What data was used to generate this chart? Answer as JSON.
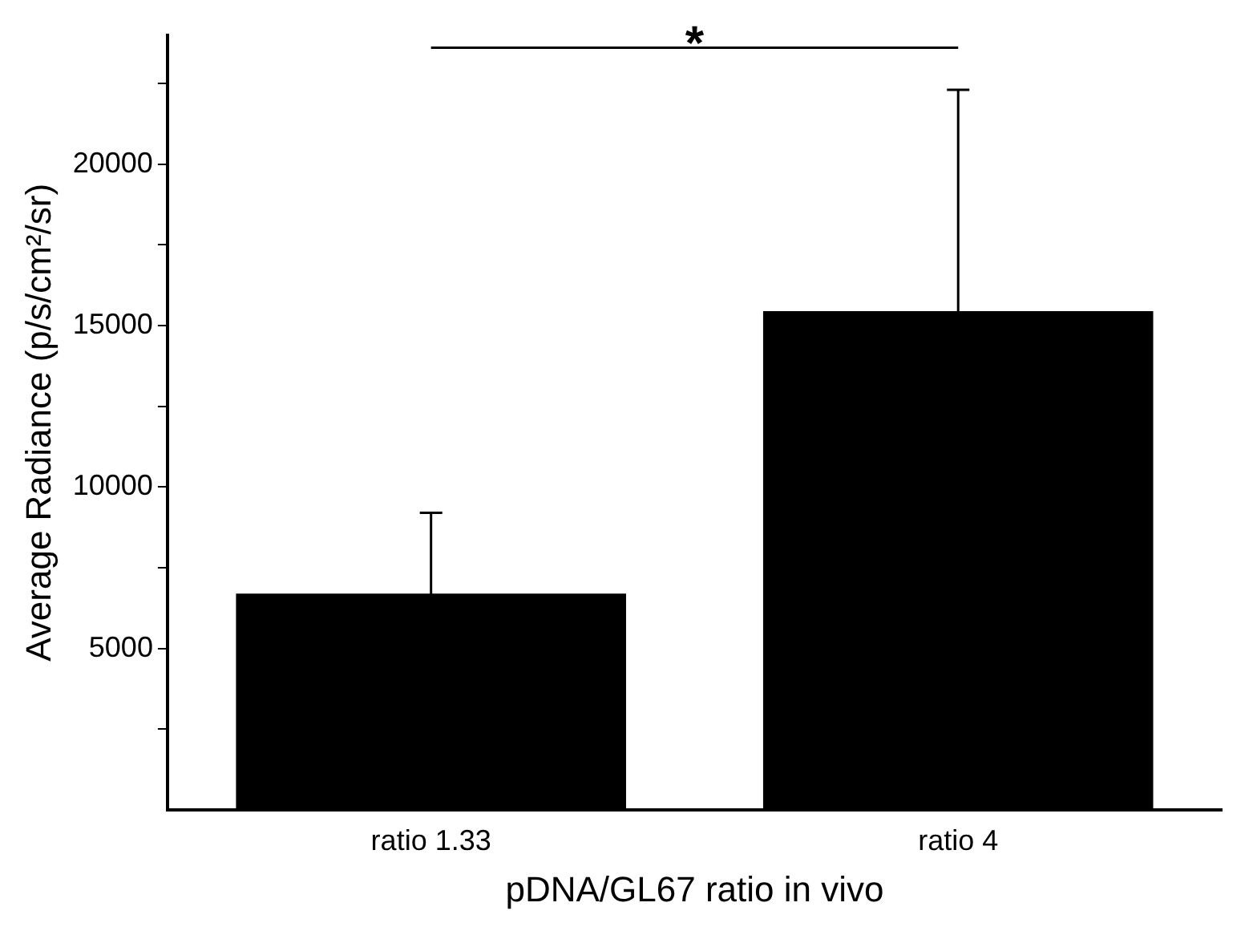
{
  "chart_data": {
    "type": "bar",
    "xlabel": "pDNA/GL67 ratio in vivo",
    "ylabel": "Average Radiance (p/s/cm²/sr)",
    "categories": [
      "ratio 1.33",
      "ratio 4"
    ],
    "values": [
      6700,
      15450
    ],
    "errors": [
      2500,
      6850
    ],
    "color": "#000000",
    "ylim": [
      0,
      24000
    ],
    "yticks": [
      {
        "value": 2500,
        "label": null
      },
      5000,
      {
        "value": 7500,
        "label": null
      },
      10000,
      {
        "value": 12500,
        "label": null
      },
      15000,
      {
        "value": 17500,
        "label": null
      },
      20000,
      {
        "value": 22500,
        "label": null
      }
    ],
    "annotations": [
      "*"
    ],
    "grid": false,
    "legend": false
  }
}
